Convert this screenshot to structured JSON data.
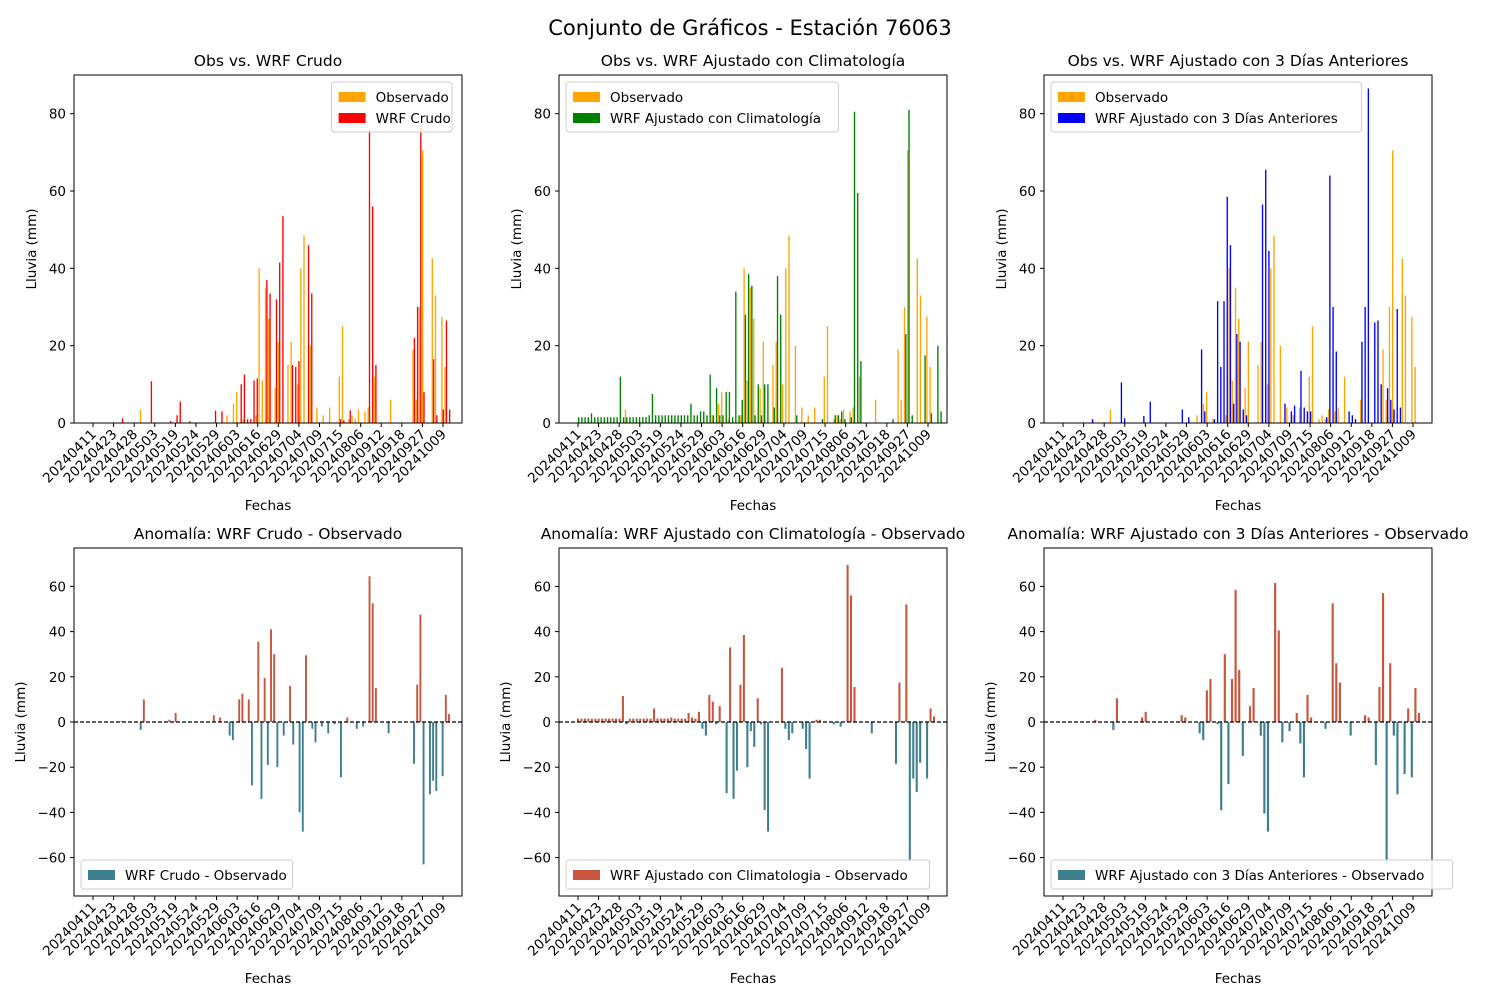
{
  "figure": {
    "suptitle": "Conjunto de Gráficos - Estación 76063"
  },
  "colors": {
    "observado": "#ffa500",
    "crudo": "#ff0000",
    "clima": "#008000",
    "tres": "#0000ff",
    "anomaly_neg": "#3d7f8f",
    "anomaly_pos": "#c8553d"
  },
  "tick_labels": [
    "20240411",
    "20240423",
    "20240428",
    "20240503",
    "20240519",
    "20240524",
    "20240529",
    "20240603",
    "20240616",
    "20240629",
    "20240704",
    "20240709",
    "20240715",
    "20240806",
    "20240912",
    "20240918",
    "20240927",
    "20241009"
  ],
  "chart_data": [
    {
      "type": "bar",
      "title": "Obs vs. WRF Crudo",
      "xlabel": "Fechas",
      "ylabel": "Lluvia (mm)",
      "ylim": [
        0,
        90
      ],
      "yticks": [
        0,
        20,
        40,
        60,
        80
      ],
      "legend": "top-right",
      "series": [
        {
          "name": "Observado",
          "color": "#ffa500",
          "values": [
            0,
            0,
            0,
            0,
            0,
            0,
            0,
            0,
            0,
            0,
            0,
            0,
            0,
            0,
            0,
            3.5,
            0,
            0,
            0,
            0,
            0,
            0,
            0,
            0,
            0,
            0,
            0,
            0,
            0,
            0,
            0,
            0,
            0,
            0,
            0,
            0,
            0,
            0,
            0,
            0,
            0,
            0,
            2,
            0,
            5,
            8,
            0,
            1,
            0,
            0,
            0,
            2,
            40,
            11,
            35,
            27,
            0,
            9,
            21,
            0,
            0,
            15,
            21,
            0,
            10,
            40,
            48.5,
            0,
            20,
            0,
            4,
            0,
            2,
            0,
            4,
            0,
            0,
            12,
            25,
            0,
            1,
            2,
            1,
            3.5,
            0,
            3,
            4,
            0,
            12,
            0,
            0,
            0,
            0,
            6,
            0,
            0,
            0,
            0,
            0,
            0,
            19,
            6,
            30,
            70.5,
            0,
            0,
            42.5,
            33,
            0,
            27.5,
            14.5,
            0
          ]
        },
        {
          "name": "WRF Crudo",
          "color": "#ff0000",
          "values": [
            0,
            0,
            0,
            0,
            0,
            0,
            0,
            0,
            0,
            1.2,
            0,
            0,
            0,
            0,
            0,
            0,
            0,
            0,
            10.8,
            0,
            0,
            0,
            0,
            0,
            0.5,
            0,
            2,
            5.5,
            0,
            0,
            0.5,
            0,
            0,
            0,
            0,
            0,
            0,
            0,
            3.2,
            0,
            3,
            0,
            0,
            0,
            0,
            0,
            10,
            12.5,
            1,
            1,
            11,
            11.5,
            0,
            0,
            37,
            33.5,
            0,
            32,
            41.5,
            53.5,
            0,
            0,
            15,
            14.5,
            16,
            0,
            0,
            46,
            33.5,
            0,
            0,
            0,
            0,
            0,
            0,
            0,
            0,
            1,
            0.7,
            0,
            3.3,
            0,
            0,
            0,
            0,
            0,
            76,
            56,
            15,
            0,
            0,
            0,
            0,
            0,
            0,
            0,
            0,
            0,
            0,
            0,
            22,
            30,
            76.5,
            8,
            0,
            0,
            16.5,
            2,
            0,
            3.5,
            26.5,
            3.5
          ]
        }
      ]
    },
    {
      "type": "bar",
      "title": "Obs vs. WRF Ajustado con Climatología",
      "xlabel": "Fechas",
      "ylabel": "Lluvia (mm)",
      "ylim": [
        0,
        90
      ],
      "yticks": [
        0,
        20,
        40,
        60,
        80
      ],
      "legend": "top-left",
      "series": [
        {
          "name": "Observado",
          "color": "#ffa500",
          "values": [
            0,
            0,
            0,
            0,
            0,
            0,
            0,
            0,
            0,
            0,
            0,
            0,
            0,
            0,
            0,
            3.5,
            0,
            0,
            0,
            0,
            0,
            0,
            0,
            0,
            0,
            0,
            0,
            0,
            0,
            0,
            0,
            0,
            0,
            0,
            0,
            0,
            0,
            0,
            0,
            0,
            0,
            0,
            2,
            0,
            5,
            8,
            0,
            1,
            0,
            0,
            0,
            2,
            40,
            11,
            35,
            27,
            0,
            9,
            21,
            0,
            0,
            15,
            21,
            0,
            10,
            40,
            48.5,
            0,
            20,
            0,
            4,
            0,
            2,
            0,
            4,
            0,
            0,
            12,
            25,
            0,
            1,
            2,
            1,
            3.5,
            0,
            3,
            4,
            0,
            12,
            0,
            0,
            0,
            0,
            6,
            0,
            0,
            0,
            0,
            0,
            0,
            19,
            6,
            30,
            70.5,
            0,
            0,
            42.5,
            33,
            0,
            27.5,
            14.5,
            0
          ]
        },
        {
          "name": "WRF Ajustado con Climatología",
          "color": "#008000",
          "values": [
            1.5,
            1.5,
            1.5,
            1.5,
            2.5,
            1.5,
            1.5,
            1.5,
            1.5,
            1.5,
            1.5,
            1.5,
            1.5,
            12,
            1.5,
            1.5,
            1.5,
            1.5,
            1.5,
            1.5,
            1.5,
            1.5,
            2,
            7.5,
            2,
            2,
            2,
            2,
            2,
            2,
            2,
            2,
            2,
            2,
            2,
            5,
            2,
            2,
            3,
            3,
            2,
            12.5,
            2,
            9,
            2,
            2,
            8,
            8,
            1.5,
            34,
            2,
            6,
            28,
            38.5,
            35.5,
            2,
            10,
            2,
            10,
            10,
            0,
            4,
            38,
            28,
            0,
            0,
            0,
            0,
            2,
            0,
            0,
            0,
            0,
            0,
            0,
            0,
            1,
            0,
            0,
            0,
            2,
            2,
            3,
            1,
            0,
            1.5,
            80.5,
            59.5,
            16,
            0,
            0,
            0,
            0,
            0,
            0,
            0,
            0,
            0,
            1,
            0,
            0,
            0,
            23,
            81,
            2,
            0,
            0,
            0,
            17.5,
            0,
            2.5,
            0,
            20,
            3
          ]
        }
      ]
    },
    {
      "type": "bar",
      "title": "Obs vs. WRF Ajustado con 3 Días Anteriores",
      "xlabel": "Fechas",
      "ylabel": "Lluvia (mm)",
      "ylim": [
        0,
        90
      ],
      "yticks": [
        0,
        20,
        40,
        60,
        80
      ],
      "legend": "top-left",
      "series": [
        {
          "name": "Observado",
          "color": "#ffa500",
          "values": [
            0,
            0,
            0,
            0,
            0,
            0,
            0,
            0,
            0,
            0,
            0,
            0,
            0,
            0,
            0,
            3.5,
            0,
            0,
            0,
            0,
            0,
            0,
            0,
            0,
            0,
            0,
            0,
            0,
            0,
            0,
            0,
            0,
            0,
            0,
            0,
            0,
            0,
            0,
            0,
            0,
            0,
            0,
            2,
            0,
            5,
            8,
            0,
            1,
            0,
            0,
            0,
            2,
            40,
            11,
            35,
            27,
            0,
            9,
            21,
            0,
            0,
            15,
            21,
            0,
            10,
            40,
            48.5,
            0,
            20,
            0,
            4,
            0,
            2,
            0,
            4,
            0,
            0,
            12,
            25,
            0,
            1,
            2,
            1,
            3.5,
            0,
            3,
            4,
            0,
            12,
            0,
            0,
            0,
            0,
            6,
            0,
            0,
            0,
            0,
            0,
            0,
            19,
            6,
            30,
            70.5,
            0,
            0,
            42.5,
            33,
            0,
            27.5,
            14.5,
            0
          ]
        },
        {
          "name": "WRF Ajustado con 3 Días Anteriores",
          "color": "#0000ff",
          "values": [
            0,
            0,
            0,
            0,
            0,
            0,
            0,
            0,
            0,
            1,
            0,
            0,
            0,
            0,
            0,
            0,
            0,
            0,
            10.5,
            1.2,
            0,
            0,
            0,
            0,
            0,
            1.8,
            0,
            5.5,
            0,
            0,
            0,
            0,
            0,
            0,
            0,
            0,
            0,
            3.5,
            0,
            1.5,
            0,
            0,
            0,
            19,
            3,
            0,
            0,
            1,
            31.5,
            14.5,
            31.5,
            58.5,
            46,
            5,
            23,
            21,
            3.5,
            2,
            0,
            0,
            0,
            0,
            56.5,
            65.5,
            44.5,
            0,
            0,
            0,
            0,
            5,
            0,
            3,
            4.5,
            0,
            13.5,
            4,
            3,
            3,
            0,
            0,
            0,
            0,
            1.5,
            64,
            30,
            18.5,
            0,
            0,
            0,
            3,
            2,
            1,
            0,
            21,
            30,
            86.5,
            0,
            26,
            26.5,
            10,
            0,
            9,
            6,
            3.5,
            29.5,
            4,
            0,
            0,
            0,
            0,
            0,
            0,
            0,
            0,
            0,
            0
          ]
        }
      ]
    },
    {
      "type": "bar",
      "title": "Anomalía: WRF Crudo - Observado",
      "xlabel": "Fechas",
      "ylabel": "Lluvia (mm)",
      "ylim": [
        -77,
        77
      ],
      "yticks": [
        -60,
        -40,
        -20,
        0,
        20,
        40,
        60
      ],
      "legend": "bottom-left",
      "series": [
        {
          "name": "WRF Crudo - Observado",
          "color": "#3d7f8f",
          "values": [
            0,
            0,
            0,
            0,
            0,
            0,
            0,
            0,
            0,
            0.5,
            0,
            0,
            0,
            0,
            0,
            -3.5,
            10,
            0,
            0,
            0,
            0,
            0,
            0,
            0,
            1,
            0,
            4,
            0,
            0,
            0,
            0,
            0,
            0,
            0,
            0,
            0,
            0,
            0,
            3,
            0,
            2,
            0,
            0,
            -6,
            -8,
            0,
            10,
            12.5,
            0,
            10,
            -28,
            0,
            35.5,
            -34,
            19.5,
            -19,
            41,
            30,
            -20,
            0,
            -6,
            0,
            16,
            -10,
            0,
            -40,
            -48.5,
            29.5,
            0,
            -3,
            -9,
            0,
            -2,
            0,
            -5,
            0,
            -1,
            0,
            -24.5,
            0,
            2,
            0,
            0,
            -3,
            0,
            -2,
            0,
            64.5,
            52.5,
            15,
            0,
            0,
            0,
            -5,
            0,
            0,
            0,
            0,
            0,
            0,
            0,
            -18.5,
            16.5,
            47.5,
            -63,
            0,
            -32,
            -26,
            -30.5,
            0,
            -24,
            12,
            3.5
          ]
        }
      ]
    },
    {
      "type": "bar",
      "title": "Anomalía: WRF Ajustado con Climatología - Observado",
      "xlabel": "Fechas",
      "ylabel": "Lluvia (mm)",
      "ylim": [
        -77,
        77
      ],
      "yticks": [
        -60,
        -40,
        -20,
        0,
        20,
        40,
        60
      ],
      "legend": "bottom-left",
      "series": [
        {
          "name": "WRF Ajustado con Climatologia - Observado",
          "color": "#c8553d",
          "values": [
            1.5,
            1.5,
            1.5,
            1.5,
            1.5,
            1.5,
            1.5,
            1.5,
            1.5,
            1.5,
            1.5,
            1.5,
            1.5,
            11.5,
            -1,
            1.5,
            1.5,
            1.5,
            1.5,
            1.5,
            1.5,
            1.5,
            6,
            1.5,
            1.5,
            1.5,
            1.5,
            2,
            1.5,
            1.5,
            1.5,
            1.5,
            4,
            2,
            1.5,
            4.5,
            -3,
            -6,
            12,
            9,
            -1,
            7,
            0,
            -31.5,
            33,
            -34,
            -21.5,
            16.5,
            38.5,
            -20,
            -4,
            -11,
            10.5,
            -1,
            -39,
            -48.5,
            0,
            0,
            0,
            24,
            -3,
            -8,
            -5,
            0,
            0,
            -3,
            -12,
            -25,
            0,
            1,
            1,
            0,
            0,
            0,
            -1,
            0,
            -2,
            0,
            69.5,
            56,
            15.5,
            0,
            0,
            0,
            0,
            -5,
            0,
            0,
            0,
            0,
            0,
            0,
            -18.5,
            17.5,
            0,
            52,
            -61.5,
            -25,
            -31,
            -18,
            0,
            -25,
            6,
            2.5
          ]
        }
      ]
    },
    {
      "type": "bar",
      "title": "Anomalía: WRF Ajustado con 3 Días Anteriores - Observado",
      "xlabel": "Fechas",
      "ylabel": "Lluvia (mm)",
      "ylim": [
        -77,
        77
      ],
      "yticks": [
        -60,
        -40,
        -20,
        0,
        20,
        40,
        60
      ],
      "legend": "bottom-left",
      "series": [
        {
          "name": "WRF Ajustado con 3 Días Anteriores - Observado",
          "color": "#3d7f8f",
          "values": [
            0,
            0,
            0,
            0,
            0,
            0,
            0,
            0,
            0,
            1,
            0,
            0,
            0,
            0,
            -3.5,
            10.5,
            0,
            0,
            0,
            0,
            0,
            0,
            2,
            4.5,
            0,
            0,
            0,
            0,
            0,
            0,
            0,
            0,
            0,
            3,
            2,
            0,
            0,
            0,
            -5,
            -8,
            14,
            19,
            0,
            -1,
            -39,
            30,
            -27.5,
            19,
            58.5,
            23,
            -15,
            0,
            7,
            15,
            0,
            -6,
            -40.5,
            -48.5,
            0,
            61.5,
            40.5,
            -9,
            0,
            -4,
            0,
            4,
            -9.5,
            -24.5,
            12,
            2,
            0,
            0,
            0,
            -3,
            0,
            52.5,
            26,
            17.5,
            0,
            0,
            -6,
            0,
            0,
            0,
            3,
            2,
            0,
            -19,
            15.5,
            57,
            -63,
            26,
            -6,
            -32,
            0,
            -23,
            6,
            -24.5,
            15,
            4
          ]
        }
      ]
    }
  ]
}
